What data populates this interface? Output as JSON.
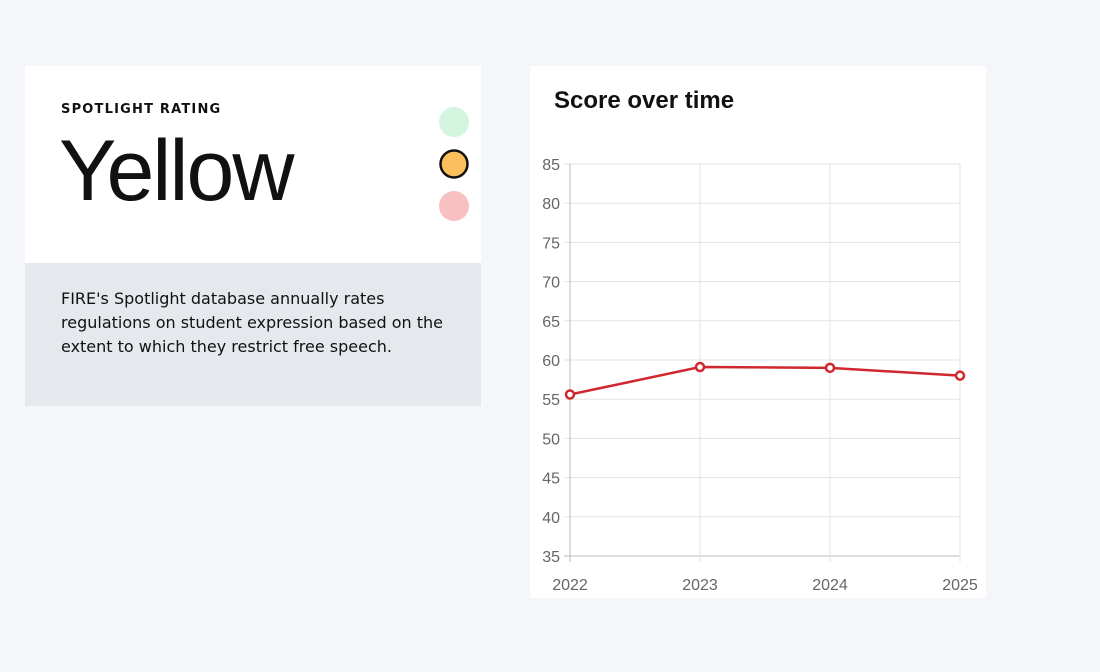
{
  "rating": {
    "label": "SPOTLIGHT RATING",
    "value": "Yellow",
    "description": "FIRE's Spotlight database annually rates regulations on student expression based on the extent to which they restrict free speech."
  },
  "chart_data": {
    "type": "line",
    "title": "Score over time",
    "categories": [
      "2022",
      "2023",
      "2024",
      "2025"
    ],
    "series": [
      {
        "name": "Score",
        "color": "#d0282e",
        "values": [
          55.6,
          59.1,
          59.0,
          58.0
        ]
      }
    ],
    "ylim": [
      35,
      85
    ],
    "yticks": [
      35,
      40,
      45,
      50,
      55,
      60,
      65,
      70,
      75,
      80,
      85
    ],
    "grid": true
  }
}
